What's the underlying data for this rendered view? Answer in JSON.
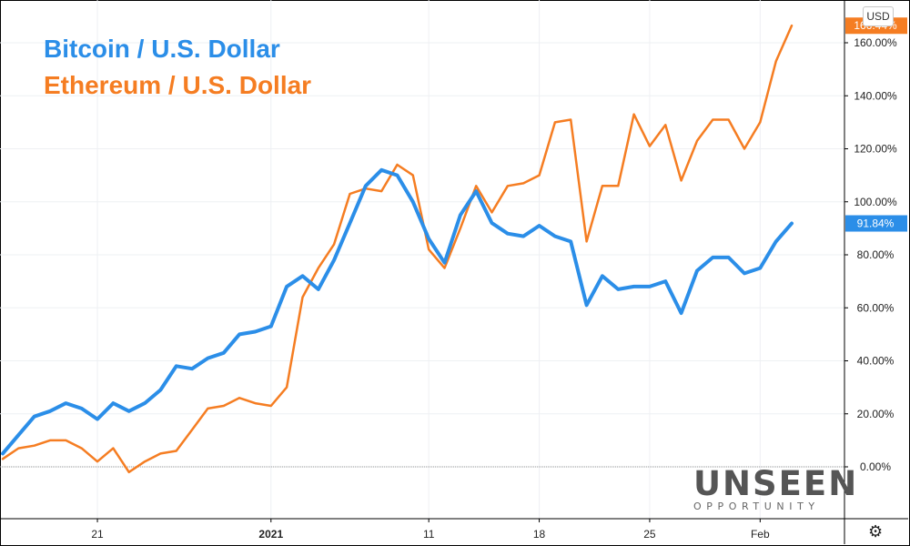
{
  "chart_data": {
    "type": "line",
    "title": "Bitcoin / U.S. Dollar",
    "subtitle": "Ethereum / U.S. Dollar",
    "currency_button": "USD",
    "x_ticks": [
      {
        "label": "21",
        "i": 6,
        "bold": false
      },
      {
        "label": "2021",
        "i": 17,
        "bold": true
      },
      {
        "label": "11",
        "i": 27,
        "bold": false
      },
      {
        "label": "18",
        "i": 34,
        "bold": false
      },
      {
        "label": "25",
        "i": 41,
        "bold": false
      },
      {
        "label": "Feb",
        "i": 48,
        "bold": false
      }
    ],
    "y_ticks": [
      0,
      20,
      40,
      60,
      80,
      100,
      120,
      140,
      160
    ],
    "y_tick_labels": [
      "0.00%",
      "20.00%",
      "40.00%",
      "60.00%",
      "80.00%",
      "100.00%",
      "120.00%",
      "140.00%",
      "160.00%"
    ],
    "ylim": [
      -20,
      175
    ],
    "n_points": 51,
    "grid": true,
    "series": [
      {
        "name": "Bitcoin / U.S. Dollar",
        "color": "#2b8ee8",
        "last_label": "91.84%",
        "values": [
          5,
          12,
          19,
          21,
          24,
          22,
          18,
          24,
          21,
          24,
          29,
          38,
          37,
          41,
          43,
          50,
          51,
          53,
          68,
          72,
          67,
          78,
          92,
          106,
          112,
          110,
          100,
          86,
          77,
          95,
          104,
          92,
          88,
          87,
          91,
          87,
          85,
          61,
          72,
          67,
          68,
          68,
          70,
          58,
          74,
          79,
          79,
          73,
          75,
          85,
          91.84
        ]
      },
      {
        "name": "Ethereum / U.S. Dollar",
        "color": "#f57d22",
        "last_label": "166.44%",
        "values": [
          3,
          7,
          8,
          10,
          10,
          7,
          2,
          7,
          -2,
          2,
          5,
          6,
          14,
          22,
          23,
          26,
          24,
          23,
          30,
          64,
          75,
          84,
          103,
          105,
          104,
          114,
          110,
          82,
          75,
          90,
          106,
          96,
          106,
          107,
          110,
          130,
          131,
          85,
          106,
          106,
          133,
          121,
          129,
          108,
          123,
          131,
          131,
          120,
          130,
          153,
          166.44
        ]
      }
    ]
  },
  "branding": {
    "logo_main": "UNSEEN",
    "logo_sub": "OPPORTUNITY"
  },
  "icons": {
    "settings": "gear-icon"
  }
}
